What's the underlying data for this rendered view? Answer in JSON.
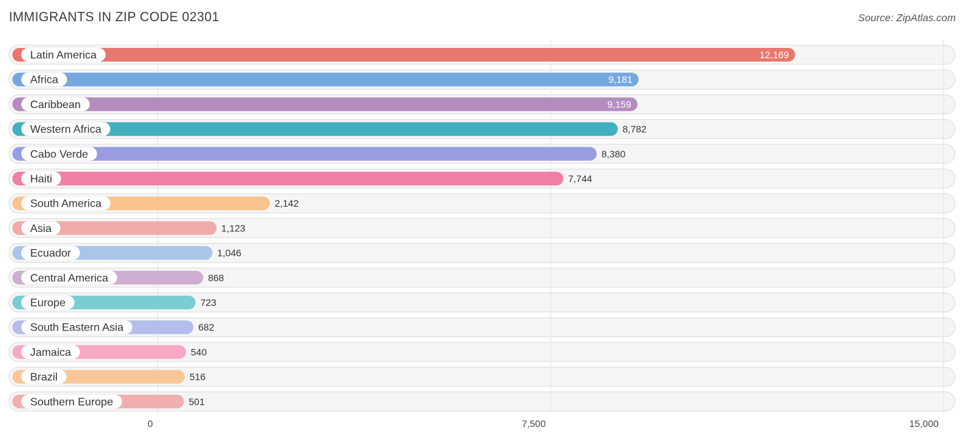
{
  "header": {
    "title": "IMMIGRANTS IN ZIP CODE 02301",
    "source": "Source: ZipAtlas.com"
  },
  "chart_data": {
    "type": "bar",
    "orientation": "horizontal",
    "title": "IMMIGRANTS IN ZIP CODE 02301",
    "categories": [
      "Latin America",
      "Africa",
      "Caribbean",
      "Western Africa",
      "Cabo Verde",
      "Haiti",
      "South America",
      "Asia",
      "Ecuador",
      "Central America",
      "Europe",
      "South Eastern Asia",
      "Jamaica",
      "Brazil",
      "Southern Europe"
    ],
    "values": [
      12169,
      9181,
      9159,
      8782,
      8380,
      7744,
      2142,
      1123,
      1046,
      868,
      723,
      682,
      540,
      516,
      501
    ],
    "value_labels": [
      "12,169",
      "9,181",
      "9,159",
      "8,782",
      "8,380",
      "7,744",
      "2,142",
      "1,123",
      "1,046",
      "868",
      "723",
      "682",
      "540",
      "516",
      "501"
    ],
    "colors": [
      "#e8786f",
      "#76a8e0",
      "#b48cbf",
      "#42b0be",
      "#979de0",
      "#f07fa5",
      "#f9c48e",
      "#f1aaaa",
      "#a9c6ea",
      "#cdaed0",
      "#79cdd3",
      "#b5bdec",
      "#f6a8c4",
      "#f9c797",
      "#f1aeae"
    ],
    "xlim": [
      0,
      15000
    ],
    "xticks": [
      0,
      7500,
      15000
    ],
    "xtick_labels": [
      "0",
      "7,500",
      "15,000"
    ],
    "xlabel": "",
    "ylabel": "",
    "grid": true
  }
}
